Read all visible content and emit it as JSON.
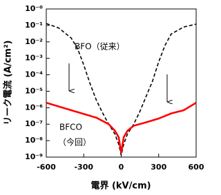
{
  "chart_data": {
    "type": "line",
    "log_y": true,
    "x_label": "電界 (kV/cm)",
    "y_label": "リーク電流 (A/cm²)",
    "xlim": [
      -600,
      600
    ],
    "xticks": [
      -600,
      -300,
      0,
      300,
      600
    ],
    "ylim": [
      1e-09,
      1
    ],
    "yticks": [
      {
        "value": 1,
        "label": "10⁻⁰"
      },
      {
        "value": 0.1,
        "label": "10⁻¹"
      },
      {
        "value": 0.01,
        "label": "10⁻²"
      },
      {
        "value": 0.001,
        "label": "10⁻³"
      },
      {
        "value": 0.0001,
        "label": "10⁻⁴"
      },
      {
        "value": 1e-05,
        "label": "10⁻⁵"
      },
      {
        "value": 1e-06,
        "label": "10⁻⁶"
      },
      {
        "value": 1e-07,
        "label": "10⁻⁷"
      },
      {
        "value": 1e-08,
        "label": "10⁻⁸"
      },
      {
        "value": 1e-09,
        "label": "10⁻⁹"
      }
    ],
    "series": [
      {
        "color": "#000000",
        "dashed": true,
        "x": [
          -600,
          -500,
          -400,
          -350,
          -300,
          -250,
          -200,
          -150,
          -100,
          -50,
          -20,
          0,
          20,
          50,
          100,
          150,
          200,
          250,
          300,
          350,
          400,
          500,
          600
        ],
        "values": [
          0.13,
          0.07,
          0.017,
          0.004,
          0.0004,
          3e-05,
          3e-06,
          5e-07,
          1e-07,
          2.5e-08,
          6e-09,
          1.3e-09,
          6e-09,
          2.5e-08,
          1e-07,
          6e-07,
          5e-06,
          4e-05,
          0.0006,
          0.006,
          0.03,
          0.08,
          0.12
        ]
      },
      {
        "color": "#ff0000",
        "dashed": false,
        "x": [
          -600,
          -400,
          -200,
          -100,
          -50,
          -20,
          0,
          20,
          50,
          100,
          200,
          300,
          400,
          500,
          600
        ],
        "values": [
          2e-06,
          7e-07,
          2.5e-07,
          1e-07,
          4e-08,
          1.6e-08,
          1.8e-09,
          1.6e-08,
          4e-08,
          8e-08,
          1.3e-07,
          2.2e-07,
          4.5e-07,
          7e-07,
          2e-06
        ]
      }
    ],
    "annotations": [
      "BFO（従来）",
      "BFCO",
      "（今回）"
    ]
  }
}
